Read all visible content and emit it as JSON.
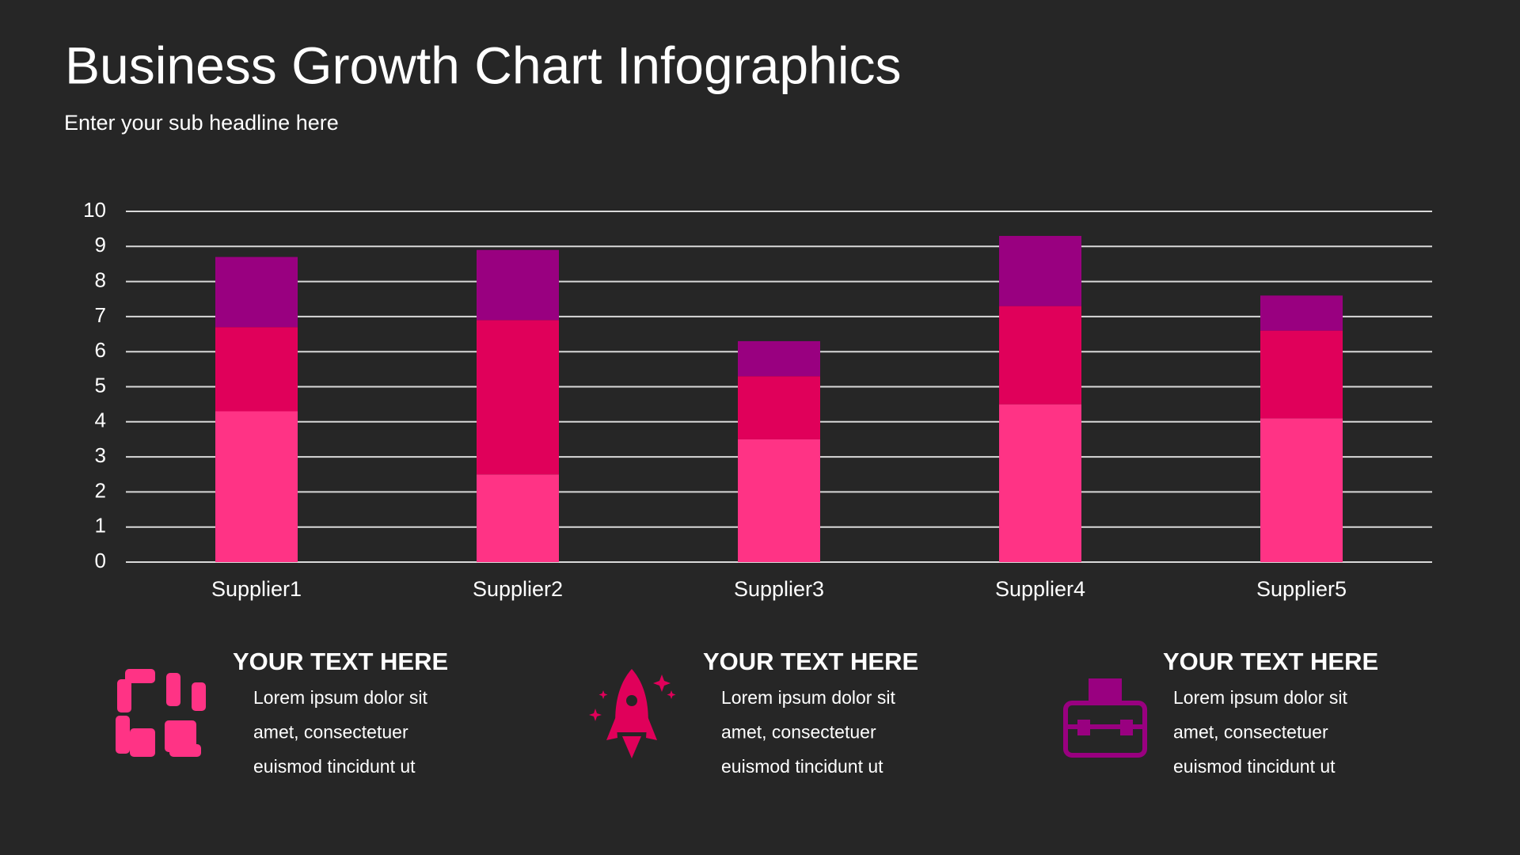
{
  "chart_data": {
    "type": "stacked_bar",
    "title": "Business Growth Chart Infographics",
    "subtitle": "Enter your sub headline here",
    "categories": [
      "Supplier1",
      "Supplier2",
      "Supplier3",
      "Supplier4",
      "Supplier5"
    ],
    "series": [
      {
        "color": "#ff3385",
        "values": [
          4.3,
          2.5,
          3.5,
          4.5,
          4.1
        ]
      },
      {
        "color": "#e0005a",
        "values": [
          2.4,
          4.4,
          1.8,
          2.8,
          2.5
        ]
      },
      {
        "color": "#990080",
        "values": [
          2.0,
          2.0,
          1.0,
          2.0,
          1.0
        ]
      }
    ],
    "ylim": [
      0,
      10
    ],
    "yticks": [
      0,
      1,
      2,
      3,
      4,
      5,
      6,
      7,
      8,
      9,
      10
    ],
    "grid": true
  },
  "sections": [
    {
      "heading": "YOUR TEXT HERE",
      "lines": [
        "Lorem ipsum dolor sit",
        "amet, consectetuer",
        "euismod tincidunt ut"
      ]
    },
    {
      "heading": "YOUR TEXT HERE",
      "lines": [
        "Lorem ipsum dolor sit",
        "amet, consectetuer",
        "euismod tincidunt ut"
      ]
    },
    {
      "heading": "YOUR TEXT HERE",
      "lines": [
        "Lorem ipsum dolor sit",
        "amet, consectetuer",
        "euismod tincidunt ut"
      ]
    }
  ]
}
